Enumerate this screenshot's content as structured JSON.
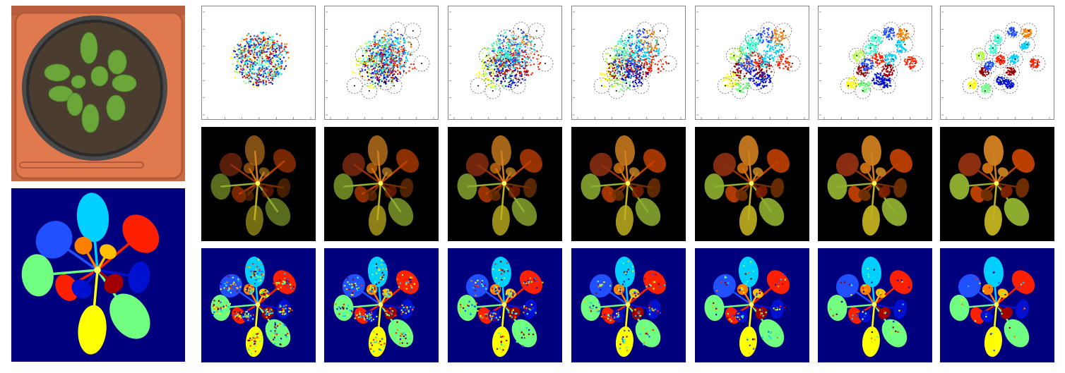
{
  "figure": {
    "left_column": {
      "photo": {
        "subject": "potted-rosette-plant-photo"
      },
      "label_map": {
        "subject": "leaf-segmentation-ground-truth"
      }
    },
    "columns": 7,
    "rows": [
      "scatter-embedding",
      "color-embedding-image",
      "segmentation-map"
    ],
    "scatter_ticks": {
      "x": [
        "-6",
        "-4",
        "-2",
        "0",
        "2",
        "4",
        "6"
      ],
      "y": [
        "6",
        "4",
        "2",
        "0",
        "-2",
        "-4",
        "-6"
      ]
    },
    "colors": {
      "label_background": "#00007f",
      "image_background": "#000000",
      "pot_orange": "#d97448",
      "leaf_palette": [
        "#ffff00",
        "#ff2000",
        "#00d0ff",
        "#70ff80",
        "#a00000",
        "#0010d0",
        "#2050ff",
        "#ff8000",
        "#40ffd0",
        "#ffc000",
        "#b0ff40",
        "#8000",
        "#800000"
      ]
    },
    "stages": [
      {
        "stage": 1,
        "spread": 1.0
      },
      {
        "stage": 2,
        "spread": 0.7
      },
      {
        "stage": 3,
        "spread": 0.55
      },
      {
        "stage": 4,
        "spread": 0.4
      },
      {
        "stage": 5,
        "spread": 0.25
      },
      {
        "stage": 6,
        "spread": 0.15
      },
      {
        "stage": 7,
        "spread": 0.08
      }
    ]
  }
}
